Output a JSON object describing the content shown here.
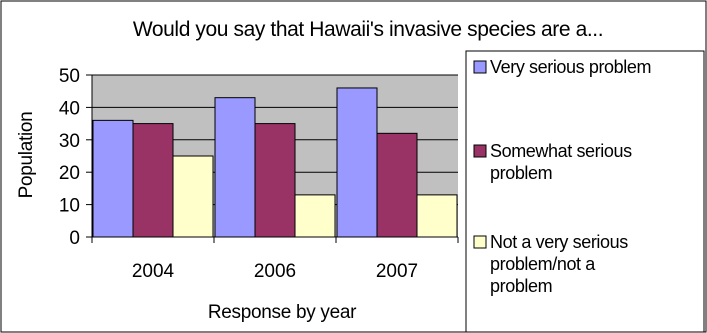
{
  "chart_data": {
    "type": "bar",
    "title": "Would you say that Hawaii's invasive species are a...",
    "xlabel": "Response by year",
    "ylabel": "Population",
    "categories": [
      "2004",
      "2006",
      "2007"
    ],
    "ylim": [
      0,
      50
    ],
    "yticks": [
      0,
      10,
      20,
      30,
      40,
      50
    ],
    "grid": true,
    "legend_position": "right",
    "series": [
      {
        "name": "Very serious problem",
        "color": "#9999FF",
        "values": [
          36,
          43,
          46
        ]
      },
      {
        "name": "Somewhat serious problem",
        "color": "#993366",
        "values": [
          35,
          35,
          32
        ]
      },
      {
        "name": "Not a very serious problem/not a problem",
        "color": "#FFFFCC",
        "values": [
          25,
          13,
          13
        ]
      }
    ],
    "legend_lines": [
      [
        "Very serious problem"
      ],
      [
        "Somewhat serious",
        "problem"
      ],
      [
        "Not a very serious",
        "problem/not a",
        "problem"
      ]
    ]
  }
}
